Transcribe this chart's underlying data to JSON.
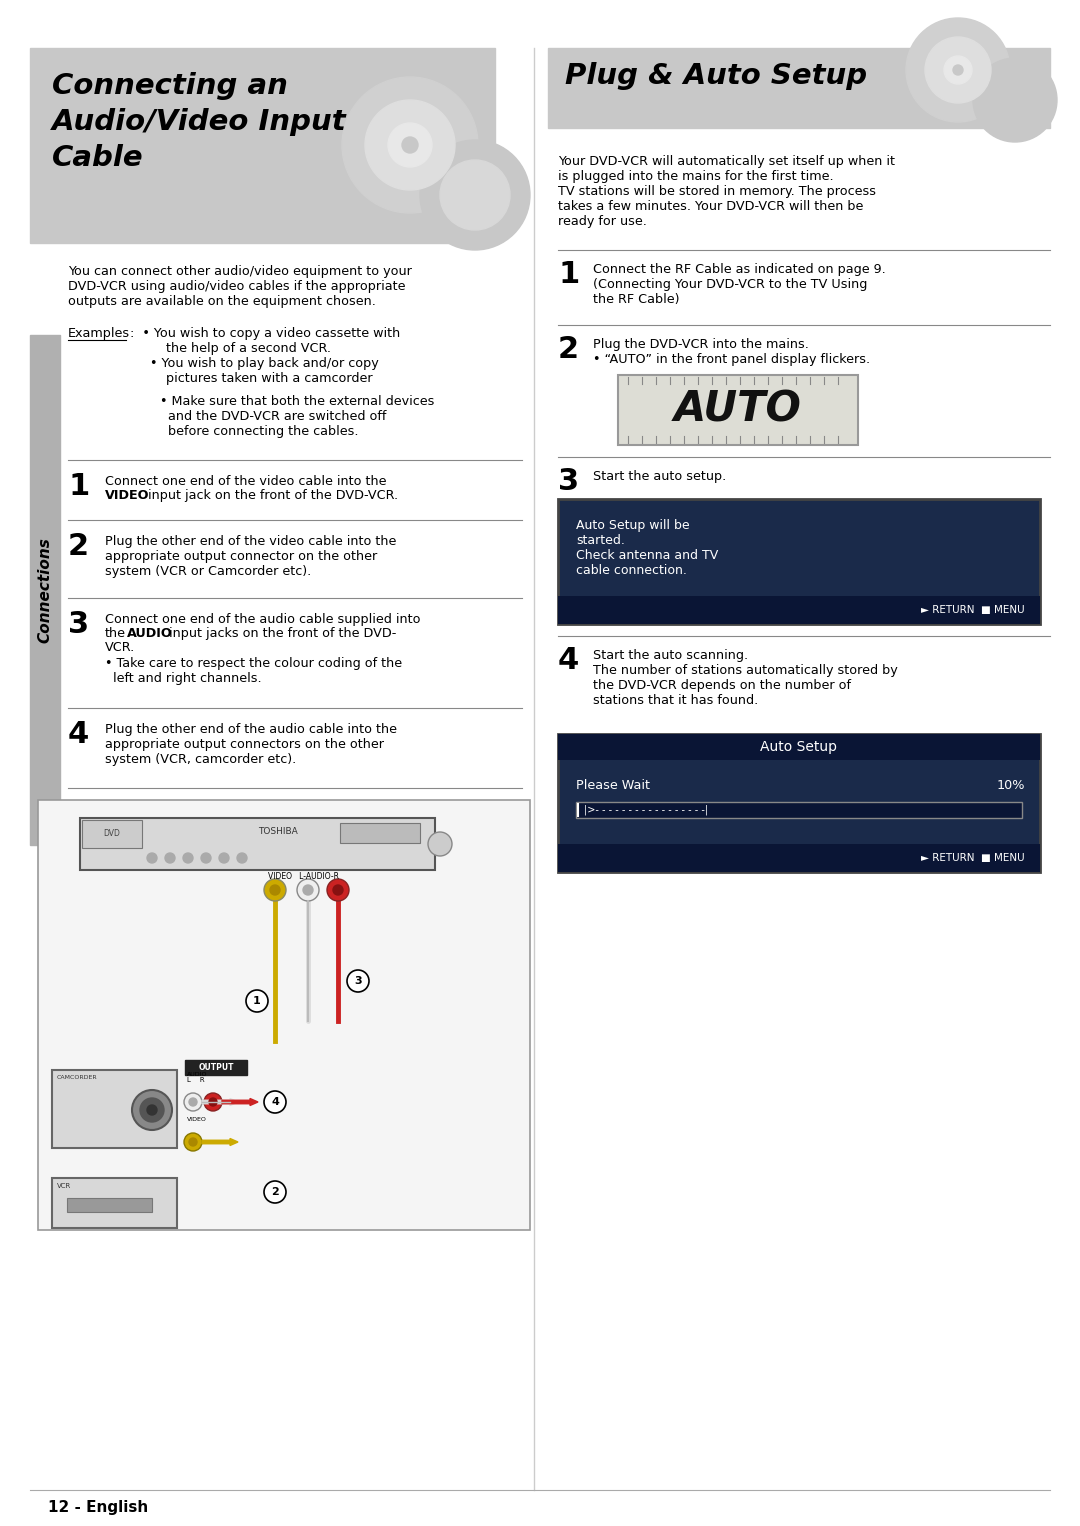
{
  "page_bg": "#ffffff",
  "header_bg": "#c8c8c8",
  "left_title_line1": "Connecting an",
  "left_title_line2": "Audio/Video Input",
  "left_title_line3": "Cable",
  "right_title": "Plug & Auto Setup",
  "connections_label": "Connections",
  "left_body_text": "You can connect other audio/video equipment to your\nDVD-VCR using audio/video cables if the appropriate\noutputs are available on the equipment chosen.",
  "examples_label": "Examples",
  "right_intro": "Your DVD-VCR will automatically set itself up when it\nis plugged into the mains for the first time.\nTV stations will be stored in memory. The process\ntakes a few minutes. Your DVD-VCR will then be\nready for use.",
  "footer_text": "12 - English",
  "screen_bg1": "#1a2a4a",
  "screen_bg2": "#1a2a4a",
  "divider_color": "#888888",
  "side_bar_color": "#b0b0b0"
}
